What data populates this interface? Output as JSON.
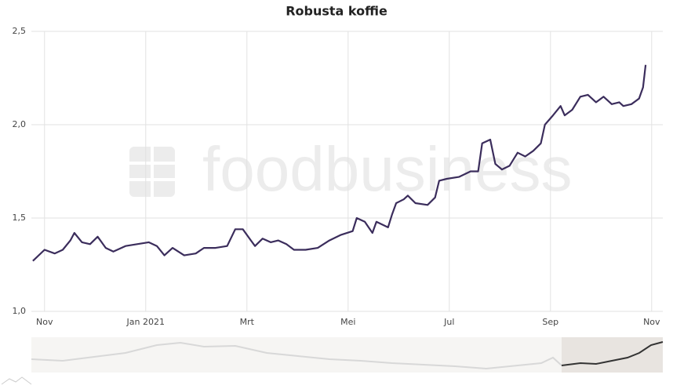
{
  "chart_data": {
    "type": "line",
    "title": "Robusta koffie",
    "watermark": "foodbusiness",
    "x": [
      -0.23,
      0,
      0.2,
      0.36,
      0.51,
      0.59,
      0.74,
      0.9,
      1.05,
      1.21,
      1.36,
      1.6,
      1.83,
      2.06,
      2.22,
      2.37,
      2.53,
      2.76,
      2.99,
      3.15,
      3.38,
      3.61,
      3.77,
      3.92,
      4.08,
      4.16,
      4.31,
      4.47,
      4.62,
      4.78,
      4.93,
      5.16,
      5.4,
      5.63,
      5.86,
      6.09,
      6.17,
      6.33,
      6.48,
      6.56,
      6.79,
      6.87,
      6.95,
      7.1,
      7.18,
      7.33,
      7.57,
      7.72,
      7.8,
      7.95,
      8.19,
      8.42,
      8.57,
      8.65,
      8.81,
      8.91,
      9.04,
      9.19,
      9.35,
      9.5,
      9.66,
      9.81,
      9.89,
      10.05,
      10.2,
      10.28,
      10.43,
      10.59,
      10.74,
      10.9,
      11.05,
      11.21,
      11.36,
      11.44,
      11.6,
      11.75,
      11.83,
      11.88
    ],
    "series": [
      {
        "name": "Robusta koffie",
        "color": "#3b2d5c",
        "values": [
          1.27,
          1.33,
          1.31,
          1.33,
          1.38,
          1.42,
          1.37,
          1.36,
          1.4,
          1.34,
          1.32,
          1.35,
          1.36,
          1.37,
          1.35,
          1.3,
          1.34,
          1.3,
          1.31,
          1.34,
          1.34,
          1.35,
          1.44,
          1.44,
          1.38,
          1.35,
          1.39,
          1.37,
          1.38,
          1.36,
          1.33,
          1.33,
          1.34,
          1.38,
          1.41,
          1.43,
          1.5,
          1.48,
          1.42,
          1.48,
          1.45,
          1.52,
          1.58,
          1.6,
          1.62,
          1.58,
          1.57,
          1.61,
          1.7,
          1.71,
          1.72,
          1.75,
          1.75,
          1.9,
          1.92,
          1.79,
          1.76,
          1.78,
          1.85,
          1.83,
          1.86,
          1.9,
          2.0,
          2.05,
          2.1,
          2.05,
          2.08,
          2.15,
          2.16,
          2.12,
          2.15,
          2.11,
          2.12,
          2.1,
          2.11,
          2.14,
          2.2,
          2.32
        ]
      }
    ],
    "xlim": [
      -0.26,
      12.22
    ],
    "xticks": [
      {
        "value": 0,
        "label": "Nov"
      },
      {
        "value": 2,
        "label": "Jan 2021"
      },
      {
        "value": 4,
        "label": "Mrt"
      },
      {
        "value": 6,
        "label": "Mei"
      },
      {
        "value": 8,
        "label": "Jul"
      },
      {
        "value": 10,
        "label": "Sep"
      },
      {
        "value": 12,
        "label": "Nov"
      }
    ],
    "ylim": [
      1.0,
      2.5
    ],
    "yticks": [
      {
        "value": 1.0,
        "label": "1,0"
      },
      {
        "value": 1.5,
        "label": "1,5"
      },
      {
        "value": 2.0,
        "label": "2,0"
      },
      {
        "value": 2.5,
        "label": "2,5"
      }
    ],
    "grid": true
  }
}
